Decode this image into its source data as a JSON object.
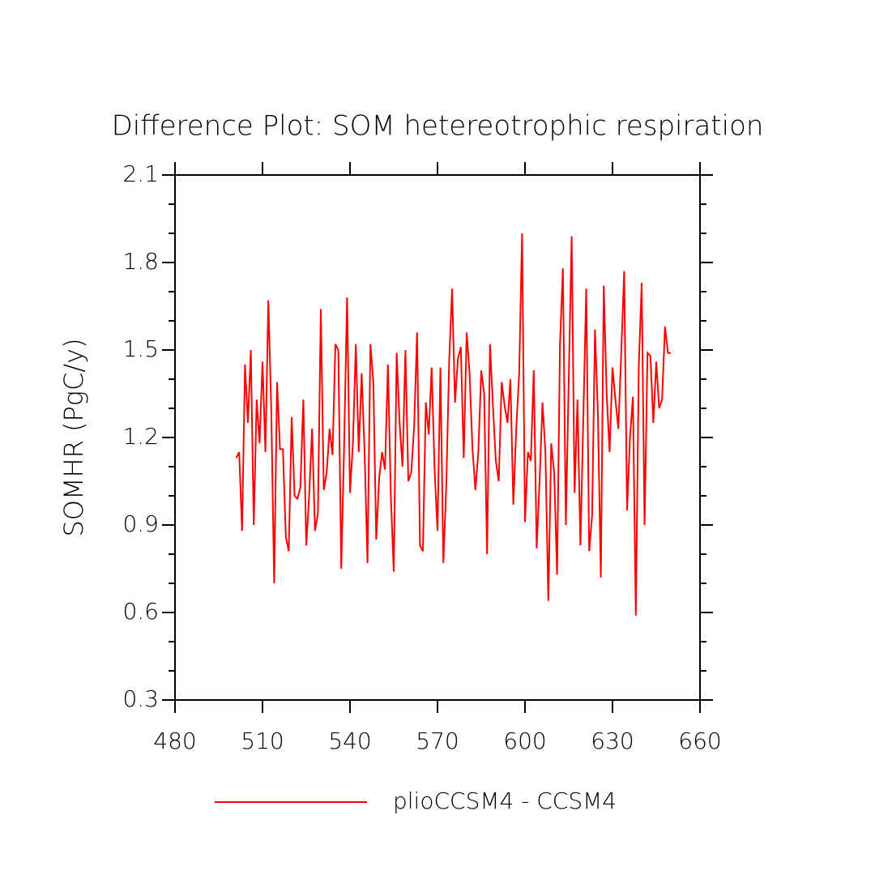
{
  "chart_data": {
    "type": "line",
    "title": "Difference Plot: SOM hetereotrophic respiration",
    "y_label": "SOMHR  (PgC/y)",
    "x": [
      501,
      502,
      503,
      504,
      505,
      506,
      507,
      508,
      509,
      510,
      511,
      512,
      513,
      514,
      515,
      516,
      517,
      518,
      519,
      520,
      521,
      522,
      523,
      524,
      525,
      526,
      527,
      528,
      529,
      530,
      531,
      532,
      533,
      534,
      535,
      536,
      537,
      538,
      539,
      540,
      541,
      542,
      543,
      544,
      545,
      546,
      547,
      548,
      549,
      550,
      551,
      552,
      553,
      554,
      555,
      556,
      557,
      558,
      559,
      560,
      561,
      562,
      563,
      564,
      565,
      566,
      567,
      568,
      569,
      570,
      571,
      572,
      573,
      574,
      575,
      576,
      577,
      578,
      579,
      580,
      581,
      582,
      583,
      584,
      585,
      586,
      587,
      588,
      589,
      590,
      591,
      592,
      593,
      594,
      595,
      596,
      597,
      598,
      599,
      600,
      601,
      602,
      603,
      604,
      605,
      606,
      607,
      608,
      609,
      610,
      611,
      612,
      613,
      614,
      615,
      616,
      617,
      618,
      619,
      620,
      621,
      622,
      623,
      624,
      625,
      626,
      627,
      628,
      629,
      630,
      631,
      632,
      633,
      634,
      635,
      636,
      637,
      638,
      639,
      640,
      641,
      642,
      643,
      644,
      645,
      646,
      647,
      648,
      649,
      650
    ],
    "series": [
      {
        "name": "plioCCSM4 - CCSM4",
        "color": "#ff0000",
        "values": [
          1.13,
          1.15,
          0.88,
          1.45,
          1.25,
          1.5,
          0.9,
          1.33,
          1.18,
          1.46,
          1.15,
          1.67,
          1.3,
          0.7,
          1.39,
          1.16,
          1.16,
          0.86,
          0.81,
          1.27,
          1.0,
          0.99,
          1.03,
          1.33,
          0.83,
          1.0,
          1.23,
          0.88,
          0.94,
          1.64,
          1.02,
          1.08,
          1.23,
          1.14,
          1.52,
          1.5,
          0.75,
          1.18,
          1.68,
          1.01,
          1.18,
          1.52,
          1.15,
          1.42,
          1.15,
          0.77,
          1.52,
          1.39,
          0.85,
          1.06,
          1.15,
          1.09,
          1.45,
          1.0,
          0.74,
          1.49,
          1.25,
          1.1,
          1.5,
          1.05,
          1.08,
          1.24,
          1.56,
          0.83,
          0.81,
          1.32,
          1.21,
          1.44,
          1.09,
          0.88,
          1.44,
          0.77,
          1.03,
          1.46,
          1.71,
          1.32,
          1.47,
          1.51,
          1.13,
          1.56,
          1.42,
          1.16,
          1.02,
          1.15,
          1.43,
          1.35,
          0.8,
          1.52,
          1.31,
          1.12,
          1.05,
          1.39,
          1.31,
          1.25,
          1.4,
          0.97,
          1.23,
          1.42,
          1.9,
          0.91,
          1.15,
          1.12,
          1.43,
          0.82,
          1.05,
          1.32,
          1.15,
          0.64,
          1.18,
          1.08,
          0.73,
          1.52,
          1.78,
          0.9,
          1.4,
          1.89,
          1.01,
          1.33,
          0.83,
          1.27,
          1.71,
          0.81,
          0.93,
          1.57,
          1.28,
          0.72,
          1.72,
          1.35,
          1.15,
          1.44,
          1.33,
          1.23,
          1.49,
          1.77,
          0.95,
          1.2,
          1.34,
          0.59,
          1.44,
          1.73,
          0.9,
          1.49,
          1.48,
          1.25,
          1.46,
          1.3,
          1.33,
          1.58,
          1.49,
          1.49
        ]
      }
    ],
    "xlim": [
      480,
      660
    ],
    "xticks": [
      480,
      510,
      540,
      570,
      600,
      630,
      660
    ],
    "ylim": [
      0.3,
      2.1
    ],
    "yticks": [
      0.3,
      0.6,
      0.9,
      1.2,
      1.5,
      1.8,
      2.1
    ],
    "yminorticks": [
      0.4,
      0.5,
      0.7,
      0.8,
      1.0,
      1.1,
      1.3,
      1.4,
      1.6,
      1.7,
      1.9,
      2.0
    ],
    "xminorticks": [],
    "grid": false
  }
}
